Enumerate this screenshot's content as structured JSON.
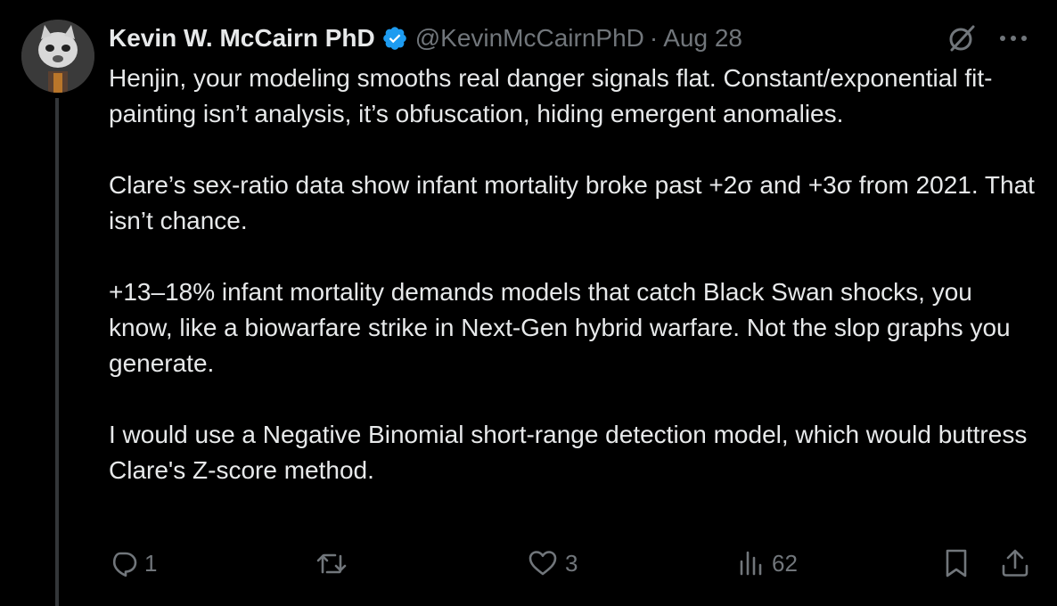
{
  "tweet": {
    "author_name": "Kevin W. McCairn PhD",
    "handle": "@KevinMcCairnPhD",
    "separator": "·",
    "date": "Aug 28",
    "paragraphs": [
      "Henjin, your modeling smooths real danger signals flat. Constant/exponential fit-painting isn’t analysis, it’s obfuscation, hiding emergent anomalies.",
      "Clare’s sex-ratio data show infant mortality broke past +2σ and +3σ from 2021. That isn’t chance.",
      "+13–18% infant mortality demands models that catch Black Swan shocks, you know, like a biowarfare strike in Next-Gen hybrid warfare. Not the slop graphs you generate.",
      "I would use a  Negative Binomial short-range detection model, which would buttress Clare's Z-score method."
    ]
  },
  "actions": {
    "replies": "1",
    "reposts": "",
    "likes": "3",
    "views": "62"
  },
  "icons": {
    "verified": "verified-badge-icon",
    "grok": "grok-icon",
    "more": "more-icon",
    "reply": "reply-icon",
    "repost": "repost-icon",
    "like": "heart-icon",
    "views": "views-icon",
    "bookmark": "bookmark-icon",
    "share": "share-icon"
  },
  "colors": {
    "background": "#000000",
    "text": "#e7e9ea",
    "secondary": "#71767b",
    "verified": "#1d9bf0",
    "thread_line": "#333639"
  }
}
